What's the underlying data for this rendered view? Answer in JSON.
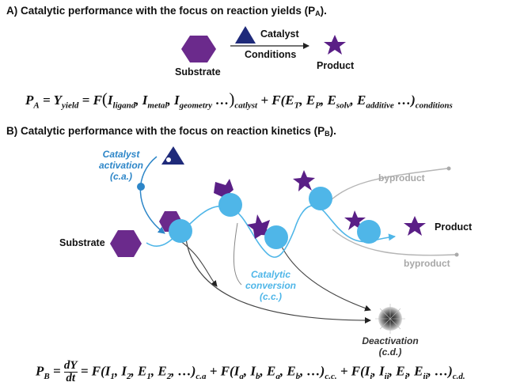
{
  "section_a": {
    "title": "A) Catalytic performance with the focus on reaction yields (P",
    "title_sub": "A",
    "title_end": ").",
    "catalyst_label": "Catalyst",
    "conditions_label": "Conditions",
    "substrate_label": "Substrate",
    "product_label": "Product",
    "equation": {
      "lhs": "P",
      "lhs_sub": "A",
      "eq1": " = Y",
      "y_sub": "yield",
      "f1": " = F",
      "i_ligand": "I",
      "i_ligand_sub": "ligand",
      "i_metal": "I",
      "i_metal_sub": "metal",
      "i_geometry": "I",
      "i_geometry_sub": "geometry",
      "dots1": " …",
      "catalyst_sub": "catlyst",
      "plus_f": " + F(",
      "e_t": "E",
      "e_t_sub": "T",
      "e_p": "E",
      "e_p_sub": "P",
      "e_solv": "E",
      "e_solv_sub": "solv",
      "e_add": "E",
      "e_add_sub": "additive",
      "dots2": " …)",
      "conditions_sub": "conditions"
    }
  },
  "section_b": {
    "title": "B) Catalytic performance with the focus on reaction kinetics (P",
    "title_sub": "B",
    "title_end": ").",
    "catalyst_activation": [
      "Catalyst",
      "activation",
      "(c.a.)"
    ],
    "catalytic_conversion": [
      "Catalytic",
      "conversion",
      "(c.c.)"
    ],
    "deactivation": [
      "Deactivation",
      "(c.d.)"
    ],
    "byproduct_top": "byproduct",
    "byproduct_bottom": "byproduct",
    "substrate_label": "Substrate",
    "product_label": "Product",
    "equation": {
      "lhs": "P",
      "lhs_sub": "B",
      "eq1": " = ",
      "frac_num": "dY",
      "frac_den": "dt",
      "eq2": " = F(",
      "t1": "I",
      "t1_sub": "1",
      "t2": "I",
      "t2_sub": "2",
      "t3": "E",
      "t3_sub": "1",
      "t4": "E",
      "t4_sub": "2",
      "end1": ", …)",
      "ca_sub": "c.a",
      "plus1": " + F(",
      "u1": "I",
      "u1_sub": "a",
      "u2": "I",
      "u2_sub": "b",
      "u3": "E",
      "u3_sub": "a",
      "u4": "E",
      "u4_sub": "b",
      "end2": ", …)",
      "cc_sub": "c.c.",
      "plus2": " + F(",
      "v1": "I",
      "v1_sub": "i",
      "v2": "I",
      "v2_sub": "ii",
      "v3": "E",
      "v3_sub": "i",
      "v4": "E",
      "v4_sub": "ii",
      "end3": ", …)",
      "cd_sub": "c.d."
    }
  },
  "colors": {
    "substrate": "#6b2a8c",
    "product": "#5a1f86",
    "catalyst": "#1f2a7a",
    "active_catalyst": "#4fb6e8",
    "blue_text": "#2d86c8",
    "light_blue_text": "#4fb6e8",
    "byproduct": "#a8a8a8"
  }
}
